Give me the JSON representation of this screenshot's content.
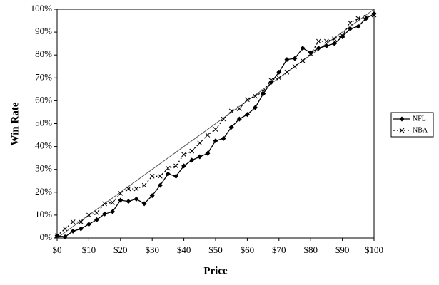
{
  "chart_data": {
    "type": "line",
    "xlabel": "Price",
    "ylabel": "Win Rate",
    "x": [
      0,
      2.5,
      5,
      7.5,
      10,
      12.5,
      15,
      17.5,
      20,
      22.5,
      25,
      27.5,
      30,
      32.5,
      35,
      37.5,
      40,
      42.5,
      45,
      47.5,
      50,
      52.5,
      55,
      57.5,
      60,
      62.5,
      65,
      67.5,
      70,
      72.5,
      75,
      77.5,
      80,
      82.5,
      85,
      87.5,
      90,
      92.5,
      95,
      97.5,
      100
    ],
    "series": [
      {
        "name": "NFL",
        "color": "#000000",
        "dash": "solid",
        "marker": "diamond",
        "values": [
          1,
          0.5,
          3,
          4,
          6,
          8,
          10.5,
          11.5,
          16.5,
          16,
          17,
          15,
          18.5,
          23,
          28,
          27,
          31.5,
          34,
          35.5,
          37,
          42.5,
          43.5,
          48.5,
          52,
          54,
          57,
          63,
          68,
          72.5,
          78,
          78.5,
          83,
          81,
          83,
          84,
          85,
          88,
          91.5,
          92.5,
          96,
          98
        ]
      },
      {
        "name": "NBA",
        "color": "#000000",
        "dash": "dotted",
        "marker": "x",
        "values": [
          1,
          4,
          7,
          7,
          10,
          11,
          15,
          15.5,
          19.5,
          21.5,
          21.5,
          23,
          27,
          27,
          30.5,
          31.5,
          36.5,
          38,
          41.5,
          45,
          47.5,
          52,
          55.5,
          56.5,
          60.5,
          62,
          64,
          69,
          70,
          72.5,
          75,
          77.5,
          80.5,
          86,
          86,
          87,
          88.5,
          94,
          96,
          96.5,
          97.5
        ]
      }
    ],
    "xlim": [
      0,
      100
    ],
    "xticks": [
      {
        "value": 0,
        "label": "$0"
      },
      {
        "value": 10,
        "label": "$10"
      },
      {
        "value": 20,
        "label": "$20"
      },
      {
        "value": 30,
        "label": "$30"
      },
      {
        "value": 40,
        "label": "$40"
      },
      {
        "value": 50,
        "label": "$50"
      },
      {
        "value": 60,
        "label": "$60"
      },
      {
        "value": 70,
        "label": "$70"
      },
      {
        "value": 80,
        "label": "$80"
      },
      {
        "value": 90,
        "label": "$90"
      },
      {
        "value": 100,
        "label": "$100"
      }
    ],
    "ylim": [
      0,
      100
    ],
    "yticks": [
      {
        "value": 0,
        "label": "0%"
      },
      {
        "value": 10,
        "label": "10%"
      },
      {
        "value": 20,
        "label": "20%"
      },
      {
        "value": 30,
        "label": "30%"
      },
      {
        "value": 40,
        "label": "40%"
      },
      {
        "value": 50,
        "label": "50%"
      },
      {
        "value": 60,
        "label": "60%"
      },
      {
        "value": 70,
        "label": "70%"
      },
      {
        "value": 80,
        "label": "80%"
      },
      {
        "value": 90,
        "label": "90%"
      },
      {
        "value": 100,
        "label": "100%"
      }
    ],
    "diagonal_reference": true,
    "legend": "right"
  }
}
